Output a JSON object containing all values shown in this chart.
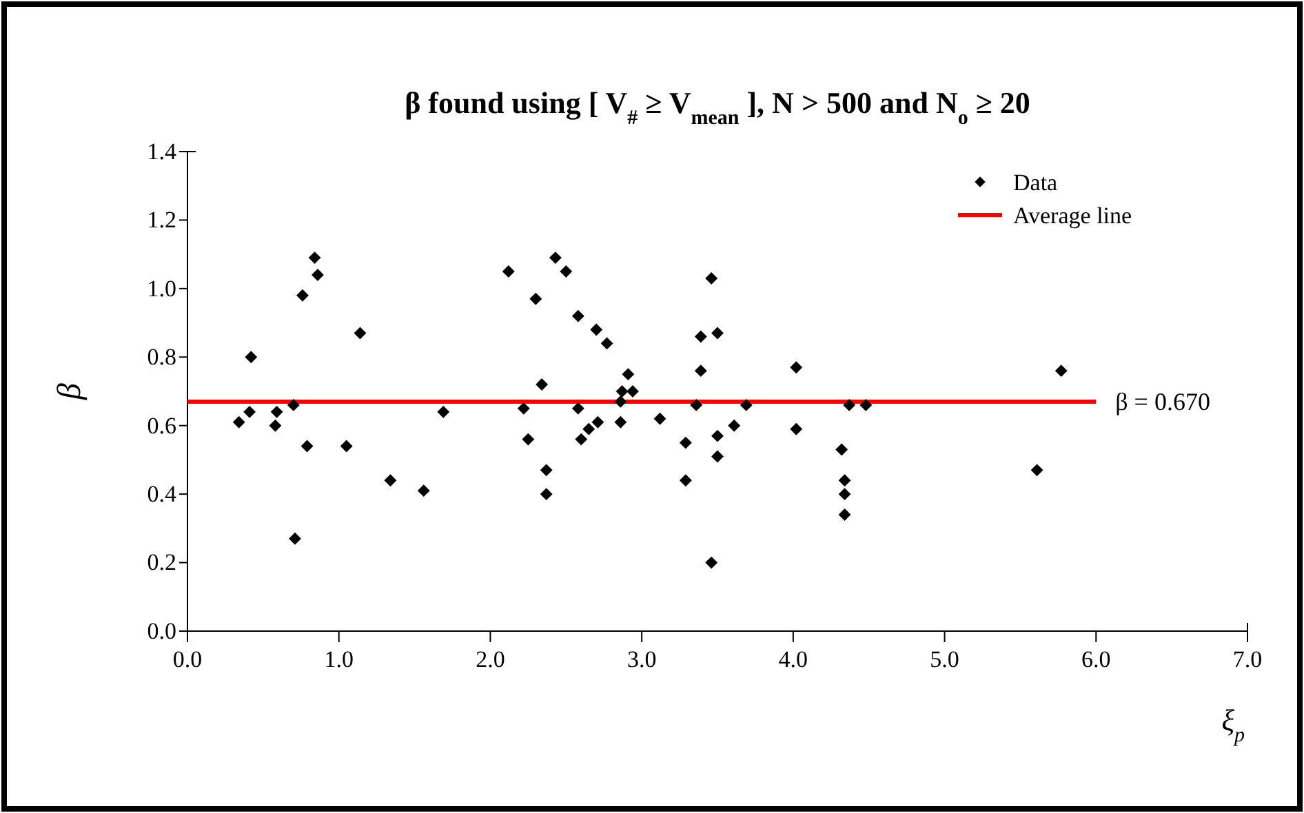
{
  "chart_data": {
    "type": "scatter",
    "title": "β found using [ V$_{#}$ ≥ V$_{mean}$ ], N > 500 and N$_{o}$ ≥ 20",
    "xlabel": "ξ$_{p}$",
    "ylabel": "β",
    "xlim": [
      0,
      7
    ],
    "xticks": [
      {
        "value": 0,
        "label": "0.0"
      },
      {
        "value": 1,
        "label": "1.0"
      },
      {
        "value": 2,
        "label": "2.0"
      },
      {
        "value": 3,
        "label": "3.0"
      },
      {
        "value": 4,
        "label": "4.0"
      },
      {
        "value": 5,
        "label": "5.0"
      },
      {
        "value": 6,
        "label": "6.0"
      },
      {
        "value": 7,
        "label": "7.0"
      }
    ],
    "ylim": [
      0,
      1.4
    ],
    "yticks": [
      {
        "value": 0,
        "label": "0.0"
      },
      {
        "value": 0.2,
        "label": "0.2"
      },
      {
        "value": 0.4,
        "label": "0.4"
      },
      {
        "value": 0.6,
        "label": "0.6"
      },
      {
        "value": 0.8,
        "label": "0.8"
      },
      {
        "value": 1,
        "label": "1.0"
      },
      {
        "value": 1.2,
        "label": "1.2"
      },
      {
        "value": 1.4,
        "label": "1.4"
      }
    ],
    "grid": false,
    "legend": "top right",
    "marker": "diamond",
    "series": [
      {
        "name": "Data",
        "color": "#000000",
        "x": [
          0.34,
          0.41,
          0.42,
          0.58,
          0.59,
          0.7,
          0.71,
          0.76,
          0.79,
          0.84,
          0.86,
          1.05,
          1.14,
          1.34,
          1.56,
          1.69,
          2.12,
          2.22,
          2.25,
          2.3,
          2.34,
          2.37,
          2.37,
          2.43,
          2.5,
          2.58,
          2.58,
          2.6,
          2.65,
          2.7,
          2.77,
          2.71,
          2.86,
          2.86,
          2.87,
          2.91,
          2.94,
          3.12,
          3.29,
          3.29,
          3.36,
          3.39,
          3.39,
          3.46,
          3.46,
          3.5,
          3.5,
          3.5,
          3.61,
          3.69,
          4.02,
          4.02,
          4.32,
          4.34,
          4.34,
          4.34,
          4.37,
          4.48,
          5.61,
          5.77
        ],
        "values": [
          0.61,
          0.64,
          0.8,
          0.6,
          0.64,
          0.66,
          0.27,
          0.98,
          0.54,
          1.09,
          1.04,
          0.54,
          0.87,
          0.44,
          0.41,
          0.64,
          1.05,
          0.65,
          0.56,
          0.97,
          0.72,
          0.47,
          0.4,
          1.09,
          1.05,
          0.92,
          0.65,
          0.56,
          0.59,
          0.88,
          0.84,
          0.61,
          0.61,
          0.67,
          0.7,
          0.75,
          0.7,
          0.62,
          0.55,
          0.44,
          0.66,
          0.76,
          0.86,
          1.03,
          0.2,
          0.87,
          0.57,
          0.51,
          0.6,
          0.66,
          0.77,
          0.59,
          0.53,
          0.44,
          0.4,
          0.34,
          0.66,
          0.66,
          0.47,
          0.76
        ]
      },
      {
        "name": "Average line",
        "type": "line",
        "color": "#ff0000",
        "marker": "none",
        "line_style": "solid",
        "x": [
          0,
          6
        ],
        "values": [
          0.67,
          0.67
        ]
      }
    ],
    "annotations": [
      {
        "text": "β = 0.670",
        "x": 6,
        "y": 0.67
      }
    ]
  }
}
